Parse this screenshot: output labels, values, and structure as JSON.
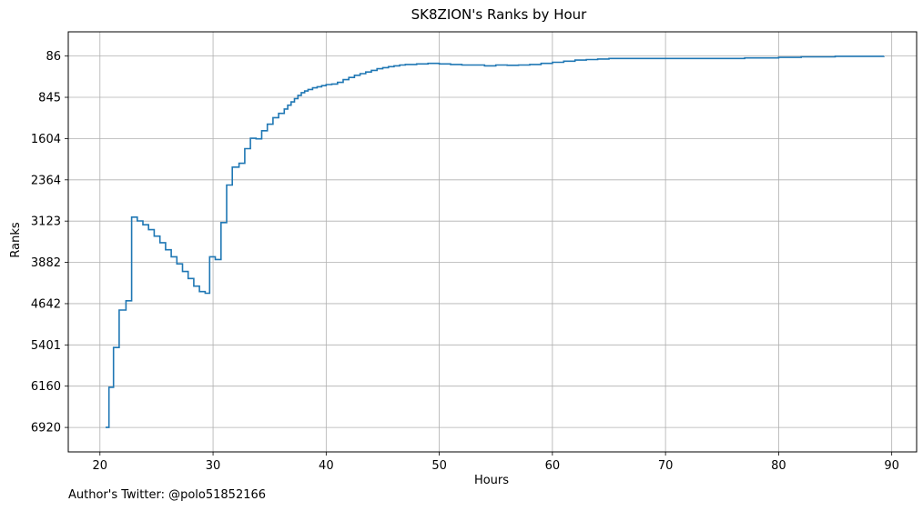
{
  "chart_data": {
    "type": "line",
    "title": "SK8ZION's Ranks by Hour",
    "xlabel": "Hours",
    "ylabel": "Ranks",
    "xlim": [
      17.2,
      92.2
    ],
    "ylim": [
      7370,
      -360
    ],
    "y_inverted": true,
    "step": true,
    "grid": true,
    "x_ticks": [
      20,
      30,
      40,
      50,
      60,
      70,
      80,
      90
    ],
    "y_ticks": [
      86,
      845,
      1604,
      2364,
      3123,
      3882,
      4642,
      5401,
      6160,
      6920
    ],
    "line_color": "#1f77b4",
    "series": [
      {
        "x": [
          20.5,
          20.8,
          21.2,
          21.7,
          22.3,
          22.8,
          23.3,
          23.8,
          24.3,
          24.8,
          25.3,
          25.8,
          26.3,
          26.8,
          27.3,
          27.8,
          28.3,
          28.8,
          29.3,
          29.7,
          30.2,
          30.7,
          31.2,
          31.7,
          32.3,
          32.8,
          33.3,
          33.8,
          34.3,
          34.8,
          35.3,
          35.8,
          36.3,
          36.6,
          36.9,
          37.2,
          37.5,
          37.8,
          38.1,
          38.4,
          38.8,
          39.2,
          39.6,
          40.0,
          40.5,
          41.0,
          41.5,
          42.0,
          42.5,
          43.0,
          43.5,
          44.0,
          44.5,
          45.0,
          45.5,
          46.0,
          46.5,
          47.0,
          48.0,
          49.0,
          50.0,
          51.0,
          52.0,
          53.0,
          54.0,
          55.0,
          56.0,
          57.0,
          58.0,
          59.0,
          60.0,
          61.0,
          62.0,
          63.0,
          64.0,
          65.0,
          70.0,
          75.0,
          77.0,
          80.0,
          82.0,
          85.0,
          89.3
        ],
        "y": [
          6920,
          6180,
          5450,
          4760,
          4590,
          3050,
          3120,
          3190,
          3280,
          3400,
          3520,
          3650,
          3780,
          3910,
          4050,
          4180,
          4320,
          4420,
          4450,
          3780,
          3830,
          3150,
          2460,
          2130,
          2060,
          1790,
          1600,
          1610,
          1460,
          1340,
          1220,
          1140,
          1060,
          990,
          930,
          870,
          810,
          760,
          730,
          700,
          670,
          650,
          630,
          610,
          600,
          570,
          520,
          480,
          440,
          410,
          380,
          350,
          320,
          300,
          280,
          265,
          250,
          240,
          230,
          220,
          230,
          240,
          250,
          250,
          265,
          250,
          255,
          250,
          240,
          220,
          200,
          180,
          160,
          150,
          140,
          130,
          130,
          130,
          120,
          110,
          100,
          90,
          86
        ]
      }
    ]
  },
  "footer": {
    "credit": "Author's Twitter: @polo51852166"
  }
}
